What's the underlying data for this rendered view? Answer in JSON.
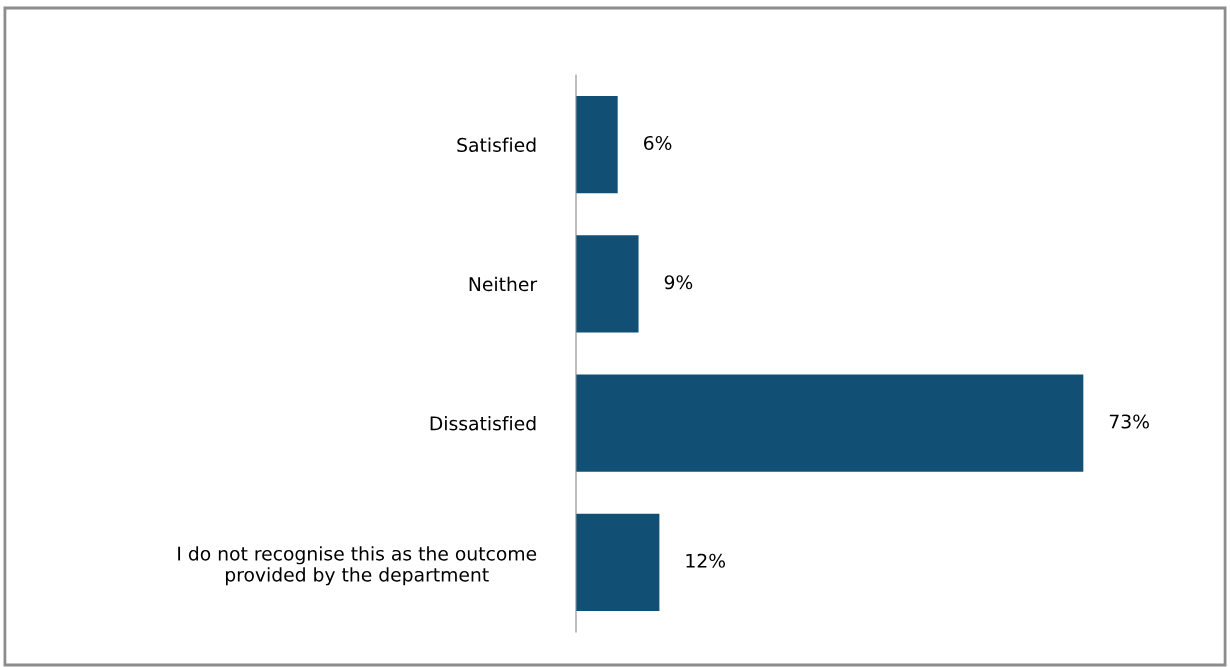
{
  "chart_data": {
    "type": "bar",
    "orientation": "horizontal",
    "categories": [
      "Satisfied",
      "Neither",
      "Dissatisfied",
      "I do not recognise this as the outcome\nprovided by the department"
    ],
    "values": [
      6,
      9,
      73,
      12
    ],
    "color": "#124f75",
    "value_labels": [
      "6%",
      "9%",
      "73%",
      "12%"
    ],
    "grid": false,
    "legend": false,
    "tick_labels": "y"
  }
}
